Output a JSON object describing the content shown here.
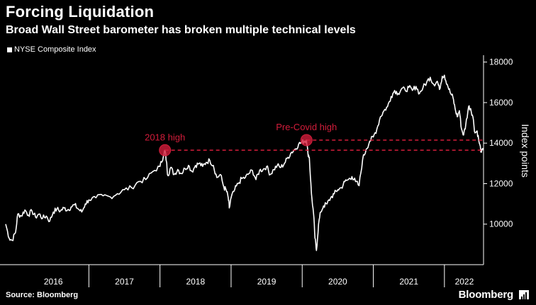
{
  "header": {
    "title": "Forcing Liquidation",
    "subtitle": "Broad Wall Street barometer has broken multiple technical levels"
  },
  "footer": {
    "source": "Source: Bloomberg",
    "brand": "Bloomberg"
  },
  "colors": {
    "background": "#000000",
    "line": "#ffffff",
    "annotation": "#d31d3b"
  },
  "chart_data": {
    "type": "line",
    "title": "Forcing Liquidation",
    "subtitle": "Broad Wall Street barometer has broken multiple technical levels",
    "xlabel": "",
    "ylabel": "Index points",
    "ylim": [
      8000,
      18200
    ],
    "y_ticks": [
      10000,
      12000,
      14000,
      16000,
      18000
    ],
    "x_range": [
      2015.83,
      2022.55
    ],
    "x_ticks": [
      {
        "label": "2016",
        "center": 2016.5
      },
      {
        "label": "2017",
        "center": 2017.5
      },
      {
        "label": "2018",
        "center": 2018.5
      },
      {
        "label": "2019",
        "center": 2019.5
      },
      {
        "label": "2020",
        "center": 2020.5
      },
      {
        "label": "2021",
        "center": 2021.5
      },
      {
        "label": "2022",
        "center": 2022.28
      }
    ],
    "x_dividers": [
      2017.0,
      2018.0,
      2019.0,
      2020.0,
      2021.0,
      2022.0
    ],
    "grid": false,
    "legend": "top-left",
    "series": [
      {
        "name": "NYSE Composite Index",
        "color": "#ffffff",
        "points": [
          [
            2015.83,
            10000
          ],
          [
            2015.88,
            9300
          ],
          [
            2015.92,
            9200
          ],
          [
            2015.97,
            9600
          ],
          [
            2016.0,
            10500
          ],
          [
            2016.05,
            10400
          ],
          [
            2016.1,
            10700
          ],
          [
            2016.15,
            10450
          ],
          [
            2016.2,
            10650
          ],
          [
            2016.25,
            10350
          ],
          [
            2016.3,
            10500
          ],
          [
            2016.35,
            10300
          ],
          [
            2016.4,
            10400
          ],
          [
            2016.45,
            10150
          ],
          [
            2016.5,
            10600
          ],
          [
            2016.55,
            10750
          ],
          [
            2016.6,
            10650
          ],
          [
            2016.65,
            10800
          ],
          [
            2016.7,
            10700
          ],
          [
            2016.75,
            10850
          ],
          [
            2016.8,
            10950
          ],
          [
            2016.85,
            10750
          ],
          [
            2016.9,
            10600
          ],
          [
            2016.95,
            11000
          ],
          [
            2017.0,
            11200
          ],
          [
            2017.1,
            11300
          ],
          [
            2017.2,
            11400
          ],
          [
            2017.3,
            11350
          ],
          [
            2017.4,
            11500
          ],
          [
            2017.5,
            11700
          ],
          [
            2017.6,
            11800
          ],
          [
            2017.7,
            12100
          ],
          [
            2017.8,
            12200
          ],
          [
            2017.9,
            12600
          ],
          [
            2018.0,
            12850
          ],
          [
            2018.05,
            13400
          ],
          [
            2018.07,
            13650
          ],
          [
            2018.09,
            13100
          ],
          [
            2018.11,
            12400
          ],
          [
            2018.15,
            12800
          ],
          [
            2018.2,
            12450
          ],
          [
            2018.25,
            12700
          ],
          [
            2018.3,
            12500
          ],
          [
            2018.35,
            12750
          ],
          [
            2018.4,
            12900
          ],
          [
            2018.45,
            12600
          ],
          [
            2018.5,
            12900
          ],
          [
            2018.55,
            13000
          ],
          [
            2018.6,
            12850
          ],
          [
            2018.65,
            13050
          ],
          [
            2018.7,
            13150
          ],
          [
            2018.75,
            12900
          ],
          [
            2018.8,
            12300
          ],
          [
            2018.85,
            12450
          ],
          [
            2018.9,
            11800
          ],
          [
            2018.93,
            11700
          ],
          [
            2018.96,
            11300
          ],
          [
            2018.975,
            10800
          ],
          [
            2019.0,
            11300
          ],
          [
            2019.05,
            11700
          ],
          [
            2019.1,
            12000
          ],
          [
            2019.15,
            12250
          ],
          [
            2019.2,
            12300
          ],
          [
            2019.25,
            12500
          ],
          [
            2019.3,
            12650
          ],
          [
            2019.35,
            12200
          ],
          [
            2019.4,
            12650
          ],
          [
            2019.45,
            12700
          ],
          [
            2019.5,
            12850
          ],
          [
            2019.55,
            12450
          ],
          [
            2019.6,
            12700
          ],
          [
            2019.65,
            12900
          ],
          [
            2019.7,
            12800
          ],
          [
            2019.75,
            13000
          ],
          [
            2019.8,
            13300
          ],
          [
            2019.85,
            13550
          ],
          [
            2019.9,
            13700
          ],
          [
            2019.95,
            13950
          ],
          [
            2020.0,
            14050
          ],
          [
            2020.03,
            14100
          ],
          [
            2020.06,
            14150
          ],
          [
            2020.08,
            13500
          ],
          [
            2020.1,
            13300
          ],
          [
            2020.13,
            11500
          ],
          [
            2020.16,
            10500
          ],
          [
            2020.18,
            9300
          ],
          [
            2020.2,
            8700
          ],
          [
            2020.23,
            10000
          ],
          [
            2020.26,
            10600
          ],
          [
            2020.3,
            10900
          ],
          [
            2020.35,
            11000
          ],
          [
            2020.4,
            11300
          ],
          [
            2020.45,
            11500
          ],
          [
            2020.5,
            11700
          ],
          [
            2020.55,
            11800
          ],
          [
            2020.6,
            12100
          ],
          [
            2020.65,
            12200
          ],
          [
            2020.7,
            12350
          ],
          [
            2020.75,
            12100
          ],
          [
            2020.8,
            11900
          ],
          [
            2020.85,
            13200
          ],
          [
            2020.9,
            13700
          ],
          [
            2020.95,
            14100
          ],
          [
            2021.0,
            14300
          ],
          [
            2021.05,
            14700
          ],
          [
            2021.1,
            15300
          ],
          [
            2021.15,
            15600
          ],
          [
            2021.2,
            15800
          ],
          [
            2021.25,
            16300
          ],
          [
            2021.3,
            16600
          ],
          [
            2021.35,
            16450
          ],
          [
            2021.4,
            16700
          ],
          [
            2021.45,
            16600
          ],
          [
            2021.5,
            16750
          ],
          [
            2021.55,
            16600
          ],
          [
            2021.6,
            16800
          ],
          [
            2021.65,
            16450
          ],
          [
            2021.7,
            16750
          ],
          [
            2021.75,
            17000
          ],
          [
            2021.8,
            17250
          ],
          [
            2021.85,
            16900
          ],
          [
            2021.9,
            17050
          ],
          [
            2021.93,
            16650
          ],
          [
            2021.97,
            17300
          ],
          [
            2022.0,
            17350
          ],
          [
            2022.04,
            16900
          ],
          [
            2022.08,
            16500
          ],
          [
            2022.12,
            16250
          ],
          [
            2022.15,
            15700
          ],
          [
            2022.18,
            15300
          ],
          [
            2022.21,
            15600
          ],
          [
            2022.24,
            14700
          ],
          [
            2022.27,
            14400
          ],
          [
            2022.3,
            14900
          ],
          [
            2022.34,
            15800
          ],
          [
            2022.37,
            15700
          ],
          [
            2022.4,
            15300
          ],
          [
            2022.43,
            14500
          ],
          [
            2022.46,
            14600
          ],
          [
            2022.49,
            14000
          ],
          [
            2022.52,
            13550
          ],
          [
            2022.545,
            13650
          ]
        ]
      }
    ],
    "annotations": [
      {
        "label": "2018 high",
        "x": 2018.07,
        "y": 13650,
        "line_value": 13650,
        "color": "#d31d3b"
      },
      {
        "label": "Pre-Covid high",
        "x": 2020.06,
        "y": 14150,
        "line_value": 14150,
        "color": "#d31d3b"
      }
    ]
  }
}
